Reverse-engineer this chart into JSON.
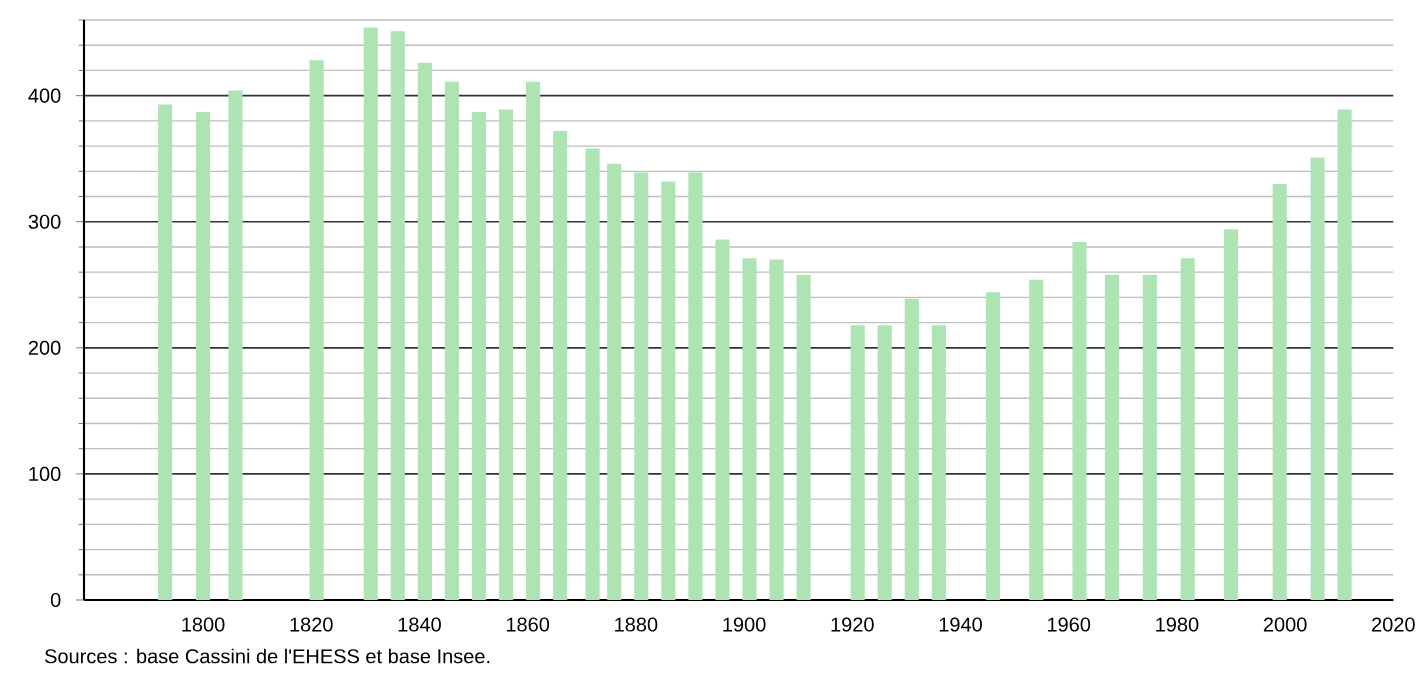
{
  "chart_data": {
    "type": "bar",
    "color": "#aee3b4",
    "x": [
      1793,
      1800,
      1806,
      1821,
      1831,
      1836,
      1841,
      1846,
      1851,
      1856,
      1861,
      1866,
      1872,
      1876,
      1881,
      1886,
      1891,
      1896,
      1901,
      1906,
      1911,
      1921,
      1926,
      1931,
      1936,
      1946,
      1954,
      1962,
      1968,
      1975,
      1982,
      1990,
      1999,
      2006,
      2011
    ],
    "values": [
      393,
      387,
      404,
      428,
      454,
      451,
      426,
      411,
      387,
      389,
      411,
      372,
      358,
      346,
      339,
      332,
      339,
      286,
      271,
      270,
      258,
      218,
      218,
      239,
      218,
      244,
      254,
      284,
      258,
      258,
      271,
      294,
      330,
      351,
      389
    ],
    "xlim": [
      1778,
      2020
    ],
    "xticks": [
      1800,
      1820,
      1840,
      1860,
      1880,
      1900,
      1920,
      1940,
      1960,
      1980,
      2000,
      2020
    ],
    "ylim": [
      0,
      460
    ],
    "yticks": [
      0,
      {
        "value": 20,
        "label": null
      },
      {
        "value": 40,
        "label": null
      },
      {
        "value": 60,
        "label": null
      },
      {
        "value": 80,
        "label": null
      },
      100,
      {
        "value": 120,
        "label": null
      },
      {
        "value": 140,
        "label": null
      },
      {
        "value": 160,
        "label": null
      },
      {
        "value": 180,
        "label": null
      },
      200,
      {
        "value": 220,
        "label": null
      },
      {
        "value": 240,
        "label": null
      },
      {
        "value": 260,
        "label": null
      },
      {
        "value": 280,
        "label": null
      },
      300,
      {
        "value": 320,
        "label": null
      },
      {
        "value": 340,
        "label": null
      },
      {
        "value": 360,
        "label": null
      },
      {
        "value": 380,
        "label": null
      },
      400,
      {
        "value": 420,
        "label": null
      },
      {
        "value": 440,
        "label": null
      },
      {
        "value": 460,
        "label": null
      }
    ],
    "grid": true,
    "annotations": [
      "Sources : base Cassini de l'EHESS et base Insee."
    ]
  }
}
